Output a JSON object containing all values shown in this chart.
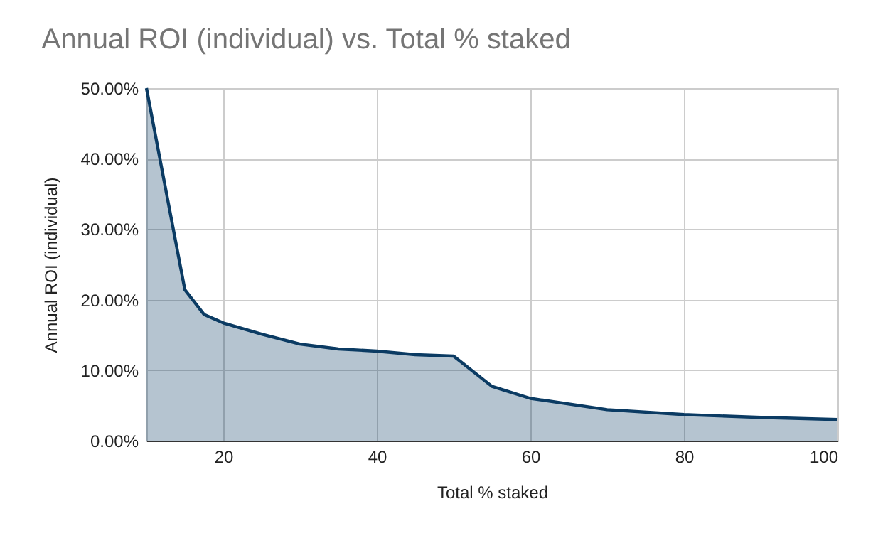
{
  "chart_data": {
    "type": "area",
    "title": "Annual ROI (individual) vs. Total % staked",
    "xlabel": "Total % staked",
    "ylabel": "Annual ROI (individual)",
    "x": [
      10,
      15,
      17.5,
      20,
      25,
      30,
      35,
      40,
      45,
      50,
      55,
      60,
      70,
      80,
      90,
      100
    ],
    "series": [
      {
        "color": "#0b3b63",
        "values": [
          50,
          21.4,
          17.9,
          16.7,
          15.1,
          13.7,
          13.0,
          12.7,
          12.2,
          12.0,
          7.7,
          6.0,
          4.4,
          3.7,
          3.3,
          3.0
        ]
      }
    ],
    "xlim": [
      10,
      100
    ],
    "xticks": [
      20,
      40,
      60,
      80,
      100
    ],
    "ylim": [
      0,
      50
    ],
    "yticks": [
      {
        "value": 0,
        "label": "0.00%"
      },
      {
        "value": 10,
        "label": "10.00%"
      },
      {
        "value": 20,
        "label": "20.00%"
      },
      {
        "value": 30,
        "label": "30.00%"
      },
      {
        "value": 40,
        "label": "40.00%"
      },
      {
        "value": 50,
        "label": "50.00%"
      }
    ],
    "grid": true
  }
}
